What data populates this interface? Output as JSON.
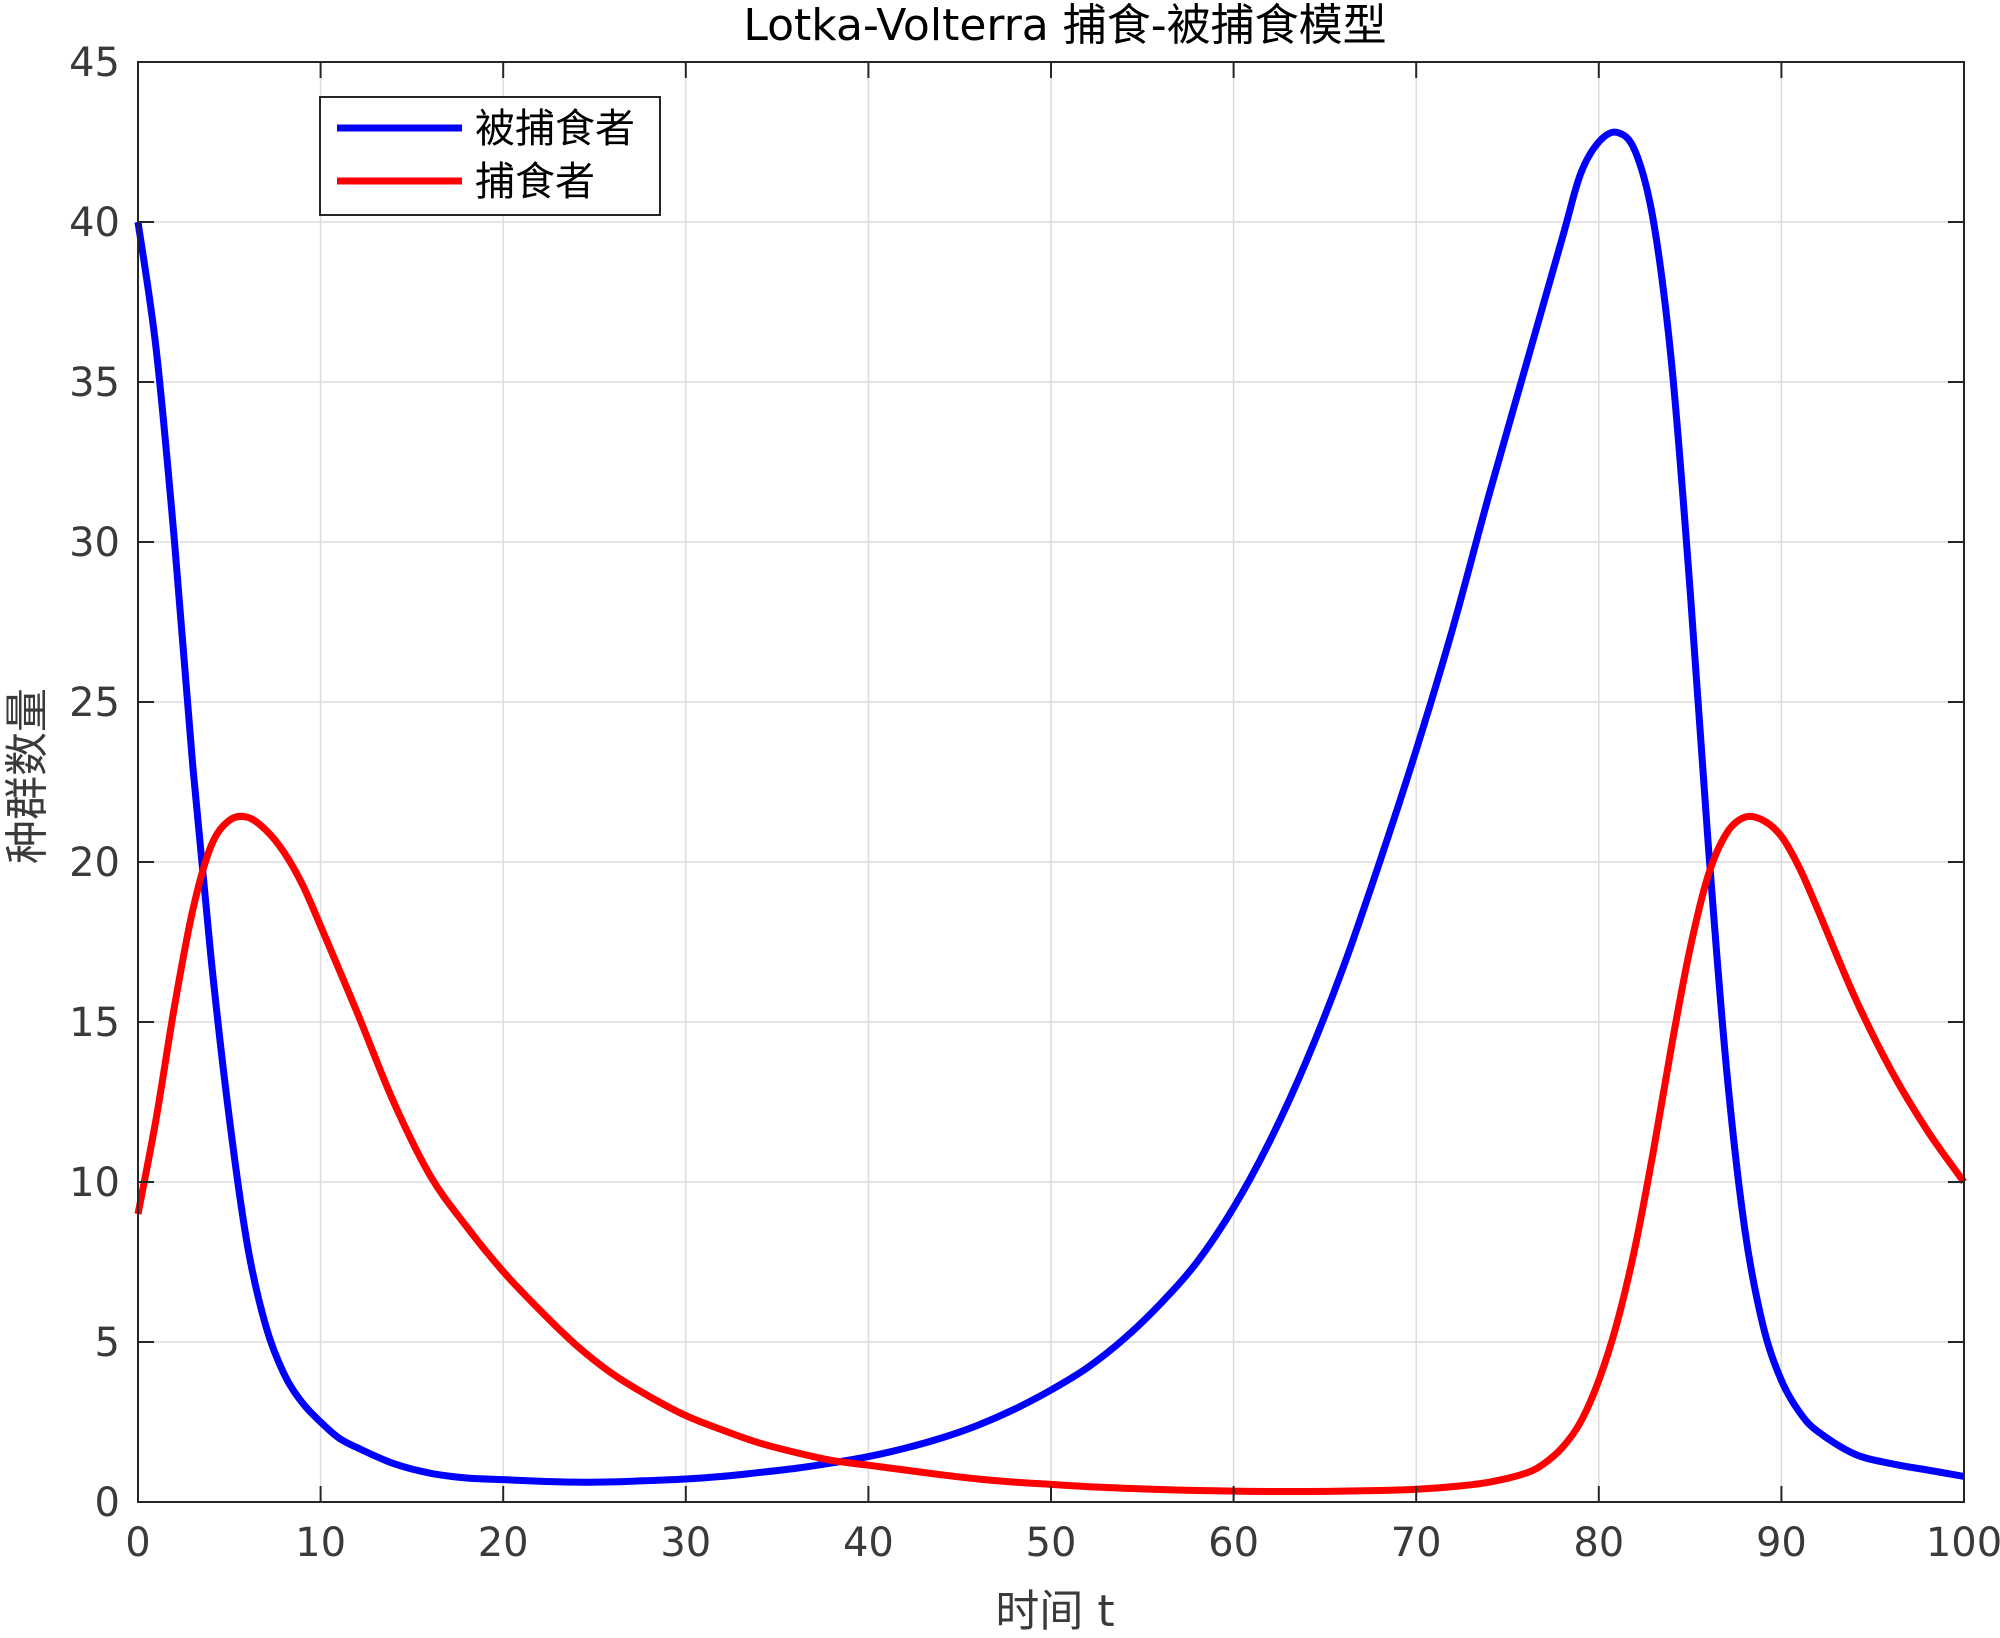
{
  "chart_data": {
    "type": "line",
    "title": "Lotka-Volterra 捕食-被捕食模型",
    "xlabel": "时间 t",
    "ylabel": "种群数量",
    "xlim": [
      0,
      100
    ],
    "ylim": [
      0,
      45
    ],
    "xticks": [
      0,
      10,
      20,
      30,
      40,
      50,
      60,
      70,
      80,
      90,
      100
    ],
    "yticks": [
      0,
      5,
      10,
      15,
      20,
      25,
      30,
      35,
      40,
      45
    ],
    "grid": true,
    "legend_position": "top-left",
    "series": [
      {
        "name": "被捕食者",
        "color": "#0000ff",
        "x": [
          0,
          1,
          2,
          3,
          4,
          5,
          6,
          7,
          8,
          9,
          10,
          11,
          12,
          14,
          16,
          18,
          20,
          22,
          24,
          26,
          28,
          30,
          32,
          34,
          36,
          38,
          40,
          42,
          44,
          46,
          48,
          50,
          52,
          54,
          56,
          58,
          60,
          62,
          64,
          66,
          68,
          70,
          72,
          74,
          76,
          78,
          79,
          80,
          81,
          82,
          83,
          84,
          85,
          86,
          87,
          88,
          89,
          90,
          91,
          92,
          94,
          96,
          98,
          100
        ],
        "y": [
          40,
          36,
          30,
          23,
          17,
          12,
          8,
          5.5,
          4,
          3.1,
          2.5,
          2.0,
          1.7,
          1.2,
          0.9,
          0.75,
          0.7,
          0.65,
          0.62,
          0.63,
          0.67,
          0.72,
          0.8,
          0.92,
          1.05,
          1.22,
          1.42,
          1.68,
          2.0,
          2.4,
          2.9,
          3.5,
          4.2,
          5.1,
          6.2,
          7.5,
          9.2,
          11.3,
          13.8,
          16.7,
          20.0,
          23.5,
          27.3,
          31.5,
          35.5,
          39.5,
          41.5,
          42.5,
          42.8,
          42.2,
          40.0,
          35.5,
          28.5,
          20.5,
          13.5,
          8.5,
          5.5,
          3.8,
          2.8,
          2.2,
          1.5,
          1.2,
          1.0,
          0.8
        ]
      },
      {
        "name": "捕食者",
        "color": "#ff0000",
        "x": [
          0,
          1,
          2,
          3,
          4,
          5,
          6,
          7,
          8,
          9,
          10,
          12,
          14,
          16,
          18,
          20,
          22,
          24,
          26,
          28,
          30,
          32,
          34,
          36,
          38,
          40,
          42,
          44,
          46,
          48,
          50,
          52,
          54,
          56,
          58,
          60,
          62,
          64,
          66,
          68,
          70,
          72,
          74,
          76,
          77,
          78,
          79,
          80,
          81,
          82,
          83,
          84,
          85,
          86,
          87,
          88,
          89,
          90,
          91,
          92,
          94,
          96,
          98,
          100
        ],
        "y": [
          9,
          12,
          15.5,
          18.5,
          20.5,
          21.3,
          21.4,
          21.0,
          20.3,
          19.3,
          18.0,
          15.3,
          12.5,
          10.2,
          8.6,
          7.2,
          6.0,
          4.9,
          4.0,
          3.3,
          2.7,
          2.25,
          1.85,
          1.55,
          1.3,
          1.15,
          1.0,
          0.85,
          0.72,
          0.62,
          0.55,
          0.48,
          0.43,
          0.39,
          0.36,
          0.34,
          0.33,
          0.33,
          0.34,
          0.36,
          0.4,
          0.48,
          0.62,
          0.9,
          1.2,
          1.7,
          2.5,
          3.8,
          5.6,
          8.0,
          11.0,
          14.3,
          17.3,
          19.6,
          20.9,
          21.4,
          21.3,
          20.8,
          19.8,
          18.5,
          15.8,
          13.5,
          11.6,
          10.0
        ]
      }
    ]
  }
}
